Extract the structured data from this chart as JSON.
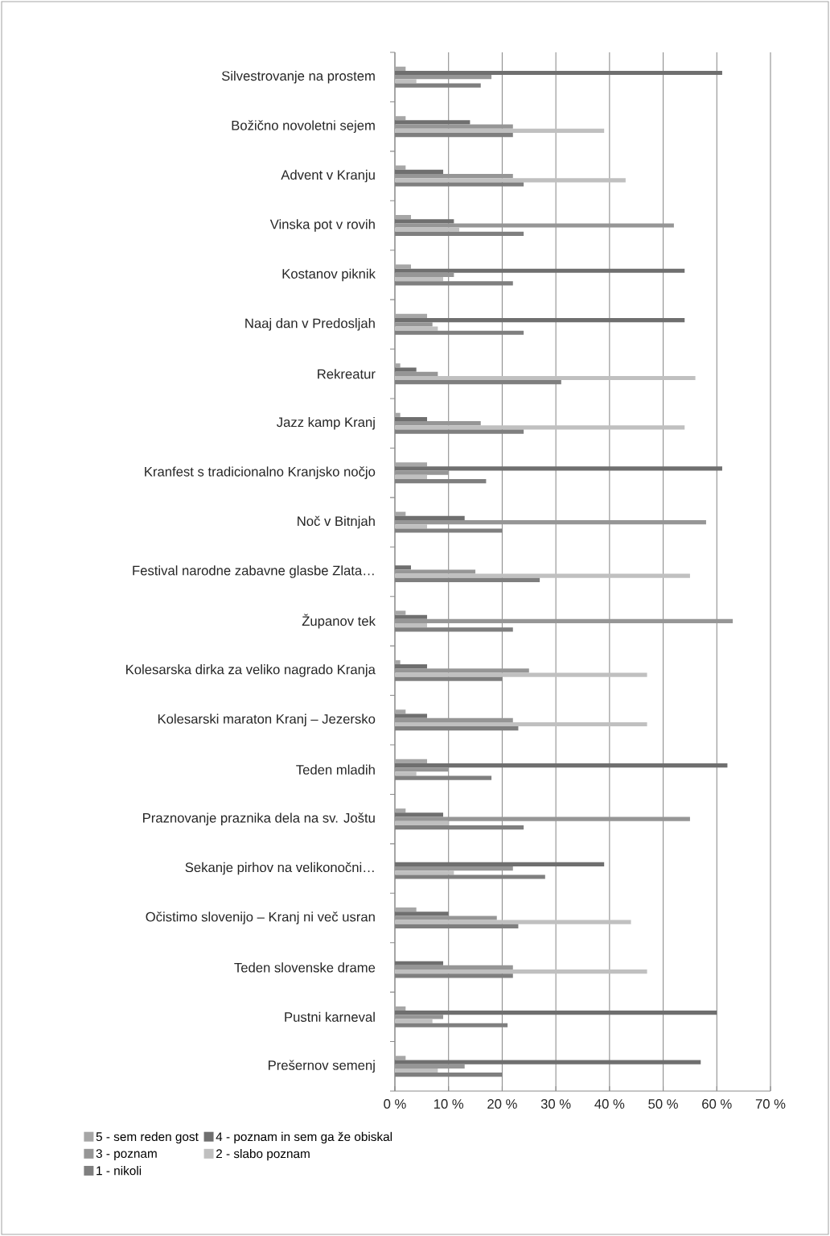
{
  "chart_data": {
    "type": "bar",
    "orientation": "horizontal",
    "categories": [
      "Silvestrovanje na prostem",
      "Božično novoletni sejem",
      "Advent v Kranju",
      "Vinska pot v rovih",
      "Kostanov piknik",
      "Naaj dan v Predosljah",
      "Rekreatur",
      "Jazz kamp Kranj",
      "Kranfest s tradicionalno Kranjsko nočjo",
      "Noč v Bitnjah",
      "Festival narodne zabavne glasbe Zlata…",
      "Županov tek",
      "Kolesarska dirka za veliko nagrado Kranja",
      "Kolesarski maraton Kranj – Jezersko",
      "Teden mladih",
      "Praznovanje praznika dela na sv. Joštu",
      "Sekanje pirhov na velikonočni…",
      "Očistimo slovenijo – Kranj ni več usran",
      "Teden slovenske drame",
      "Pustni karneval",
      "Prešernov semenj"
    ],
    "series": [
      {
        "name": "5 - sem reden gost",
        "color": "#a6a6a6",
        "values": [
          2,
          2,
          2,
          3,
          3,
          6,
          1,
          1,
          6,
          2,
          null,
          2,
          1,
          2,
          6,
          2,
          null,
          4,
          null,
          2,
          2
        ]
      },
      {
        "name": "4 - poznam in sem ga že obiskal",
        "color": "#6f6f6f",
        "values": [
          61,
          14,
          9,
          11,
          54,
          54,
          4,
          6,
          61,
          13,
          3,
          6,
          6,
          6,
          62,
          9,
          39,
          10,
          9,
          60,
          57
        ]
      },
      {
        "name": "3 - poznam",
        "color": "#969696",
        "values": [
          18,
          22,
          22,
          52,
          11,
          7,
          8,
          16,
          10,
          58,
          15,
          63,
          25,
          22,
          10,
          55,
          22,
          19,
          22,
          9,
          13
        ]
      },
      {
        "name": "2 - slabo poznam",
        "color": "#c0c0c0",
        "values": [
          4,
          39,
          43,
          12,
          9,
          8,
          56,
          54,
          6,
          6,
          55,
          6,
          47,
          47,
          4,
          10,
          11,
          44,
          47,
          7,
          8
        ]
      },
      {
        "name": "1 - nikoli",
        "color": "#7f7f7f",
        "values": [
          16,
          22,
          24,
          24,
          22,
          24,
          31,
          24,
          17,
          20,
          27,
          22,
          20,
          23,
          18,
          24,
          28,
          23,
          22,
          21,
          20
        ]
      }
    ],
    "xlim": [
      0,
      70
    ],
    "xticks": [
      {
        "value": 0,
        "label": "0 %"
      },
      {
        "value": 10,
        "label": "10 %"
      },
      {
        "value": 20,
        "label": "20 %"
      },
      {
        "value": 30,
        "label": "30 %"
      },
      {
        "value": 40,
        "label": "40 %"
      },
      {
        "value": 50,
        "label": "50 %"
      },
      {
        "value": 60,
        "label": "60 %"
      },
      {
        "value": 70,
        "label": "70 %"
      }
    ],
    "grid": "x",
    "legend": "bottom"
  }
}
